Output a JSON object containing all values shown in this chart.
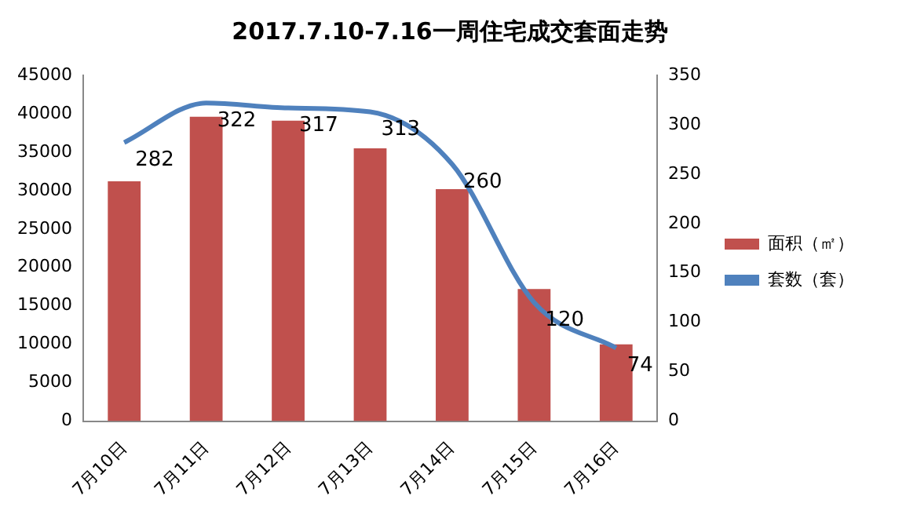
{
  "chart_data": {
    "type": "bar",
    "title": "2017.7.10-7.16一周住宅成交套面走势",
    "categories": [
      "7月10日",
      "7月11日",
      "7月12日",
      "7月13日",
      "7月14日",
      "7月15日",
      "7月16日"
    ],
    "series": [
      {
        "name": "面积（㎡）",
        "color": "#c0504d",
        "values": [
          31200,
          39600,
          39100,
          35500,
          30200,
          17200,
          10000
        ]
      },
      {
        "name": "套数（套）",
        "type": "line",
        "axis": "y2",
        "color": "#4f81bd",
        "values": [
          282,
          322,
          317,
          313,
          260,
          120,
          74
        ],
        "value_labels": [
          "282",
          "322",
          "317",
          "313",
          "260",
          "120",
          "74"
        ]
      }
    ],
    "ylim": [
      0,
      45000
    ],
    "yticks": [
      0,
      5000,
      10000,
      15000,
      20000,
      25000,
      30000,
      35000,
      40000,
      45000
    ],
    "y2lim": [
      0,
      350
    ],
    "y2ticks": [
      0,
      50,
      100,
      150,
      200,
      250,
      300,
      350
    ],
    "grid": false,
    "legend": "right",
    "marker": "none"
  }
}
